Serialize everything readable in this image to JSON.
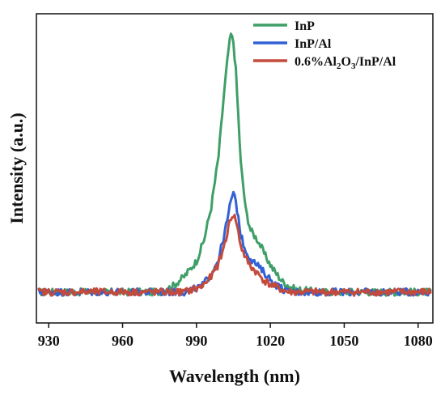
{
  "chart_data": {
    "type": "line",
    "title": "",
    "xlabel": "Wavelength (nm)",
    "ylabel": "Intensity (a.u.)",
    "xlim": [
      925,
      1086
    ],
    "ylim": [
      -0.12,
      1.08
    ],
    "xticks": [
      930,
      960,
      990,
      1020,
      1050,
      1080
    ],
    "xtick_labels": [
      "930",
      "960",
      "990",
      "1020",
      "1050",
      "1080"
    ],
    "y_ticks_shown": false,
    "grid": false,
    "legend_position": "top-right",
    "legend": [
      {
        "text": "InP"
      },
      {
        "text": "InP/Al"
      },
      {
        "text_parts": [
          "0.6%Al",
          "2",
          "O",
          "3",
          "/InP/Al"
        ]
      }
    ],
    "series": [
      {
        "name": "InP",
        "color": "#3f9f67",
        "x": [
          926,
          940,
          960,
          975,
          980,
          985,
          990,
          993,
          996,
          999,
          1001,
          1003,
          1004,
          1005,
          1006,
          1007,
          1008,
          1010,
          1012,
          1015,
          1018,
          1021,
          1025,
          1030,
          1040,
          1060,
          1085
        ],
        "y": [
          0.0,
          0.0,
          0.0,
          0.0,
          0.02,
          0.06,
          0.12,
          0.2,
          0.33,
          0.53,
          0.75,
          0.94,
          1.0,
          0.97,
          0.86,
          0.68,
          0.5,
          0.32,
          0.24,
          0.2,
          0.14,
          0.09,
          0.04,
          0.01,
          0.0,
          0.0,
          0.0
        ]
      },
      {
        "name": "InP/Al",
        "color": "#3161d4",
        "x": [
          926,
          940,
          960,
          985,
          992,
          996,
          999,
          1001,
          1003,
          1004,
          1005,
          1006,
          1007,
          1008,
          1010,
          1012,
          1015,
          1018,
          1022,
          1027,
          1040,
          1060,
          1085
        ],
        "y": [
          0.0,
          0.0,
          0.0,
          0.0,
          0.02,
          0.07,
          0.13,
          0.21,
          0.3,
          0.36,
          0.38,
          0.35,
          0.29,
          0.22,
          0.16,
          0.13,
          0.1,
          0.07,
          0.03,
          0.0,
          0.0,
          0.0,
          0.0
        ]
      },
      {
        "name": "0.6%Al2O3/InP/Al",
        "color": "#c44a3c",
        "x": [
          926,
          940,
          960,
          985,
          992,
          996,
          999,
          1001,
          1003,
          1004,
          1005,
          1006,
          1007,
          1008,
          1010,
          1012,
          1015,
          1018,
          1022,
          1027,
          1040,
          1060,
          1085
        ],
        "y": [
          0.0,
          0.0,
          0.0,
          0.0,
          0.02,
          0.06,
          0.11,
          0.17,
          0.25,
          0.29,
          0.3,
          0.28,
          0.23,
          0.18,
          0.13,
          0.1,
          0.07,
          0.04,
          0.02,
          0.0,
          0.0,
          0.0,
          0.0
        ]
      }
    ]
  }
}
